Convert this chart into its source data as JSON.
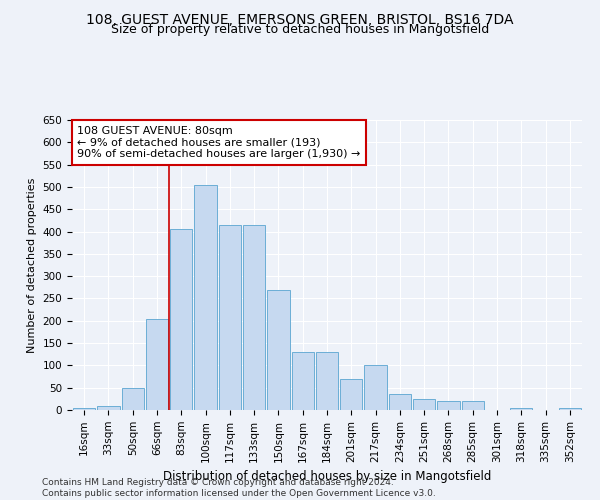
{
  "title_line1": "108, GUEST AVENUE, EMERSONS GREEN, BRISTOL, BS16 7DA",
  "title_line2": "Size of property relative to detached houses in Mangotsfield",
  "xlabel": "Distribution of detached houses by size in Mangotsfield",
  "ylabel": "Number of detached properties",
  "categories": [
    "16sqm",
    "33sqm",
    "50sqm",
    "66sqm",
    "83sqm",
    "100sqm",
    "117sqm",
    "133sqm",
    "150sqm",
    "167sqm",
    "184sqm",
    "201sqm",
    "217sqm",
    "234sqm",
    "251sqm",
    "268sqm",
    "285sqm",
    "301sqm",
    "318sqm",
    "335sqm",
    "352sqm"
  ],
  "values": [
    5,
    10,
    50,
    205,
    405,
    505,
    415,
    415,
    270,
    130,
    130,
    70,
    100,
    35,
    25,
    20,
    20,
    0,
    5,
    0,
    5
  ],
  "bar_color": "#c6d9f0",
  "bar_edge_color": "#6baed6",
  "vline_color": "#cc0000",
  "annotation_text": "108 GUEST AVENUE: 80sqm\n← 9% of detached houses are smaller (193)\n90% of semi-detached houses are larger (1,930) →",
  "annotation_box_color": "#ffffff",
  "annotation_box_edge": "#cc0000",
  "annotation_fontsize": 8,
  "title_fontsize1": 10,
  "title_fontsize2": 9,
  "xlabel_fontsize": 8.5,
  "ylabel_fontsize": 8,
  "tick_fontsize": 7.5,
  "ylim": [
    0,
    650
  ],
  "yticks": [
    0,
    50,
    100,
    150,
    200,
    250,
    300,
    350,
    400,
    450,
    500,
    550,
    600,
    650
  ],
  "background_color": "#eef2f9",
  "grid_color": "#ffffff",
  "footer_line1": "Contains HM Land Registry data © Crown copyright and database right 2024.",
  "footer_line2": "Contains public sector information licensed under the Open Government Licence v3.0.",
  "footer_fontsize": 6.5
}
